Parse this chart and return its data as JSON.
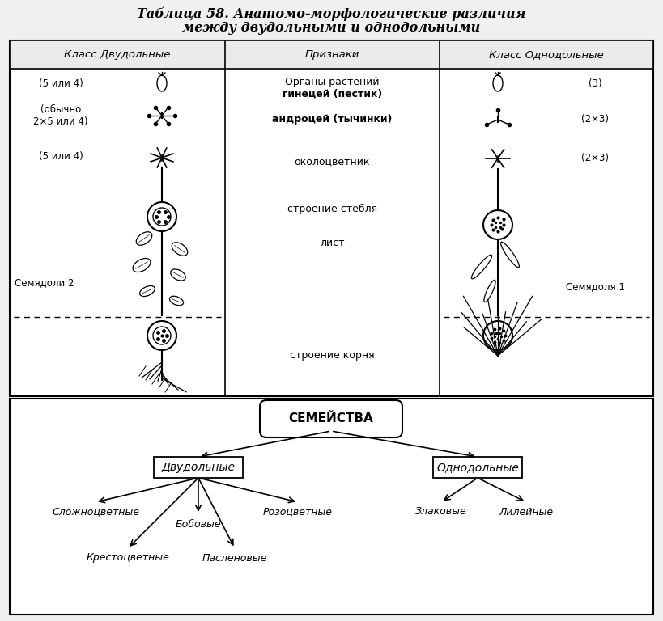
{
  "title_line1": "Таблица 58. Анатомо-морфологические различия",
  "title_line2": "между двудольными и однодольными",
  "col_headers": [
    "Класс Двудольные",
    "Признаки",
    "Класс Однодольные"
  ],
  "left_label1": "(5 или 4)",
  "left_label2": "(обычно\n2×5 или 4)",
  "left_label3": "(5 или 4)",
  "left_label4": "Семядоли 2",
  "right_label1": "(3)",
  "right_label2": "(2×3)",
  "right_label3": "(2×3)",
  "right_label4": "Семядоля 1",
  "center_text1": "Органы растений",
  "center_text1b": "гинецей (пестик)",
  "center_text2": "андроцей (тычинки)",
  "center_text3": "околоцветник",
  "center_text4": "строение стебля",
  "center_text5": "лист",
  "center_text6": "строение корня",
  "semeystva": "СЕМЕЙСТВА",
  "dvudolnye": "Двудольные",
  "odnodolnye": "Однодольные",
  "ch_slozh": "Сложноцветные",
  "ch_bob": "Бобовые",
  "ch_roz": "Розоцветные",
  "ch_krest": "Крестоцветные",
  "ch_pasl": "Пасленовые",
  "ch_zlak": "Злаковые",
  "ch_lil": "Лилейные",
  "bg": "#f0f0f0",
  "white": "#ffffff"
}
